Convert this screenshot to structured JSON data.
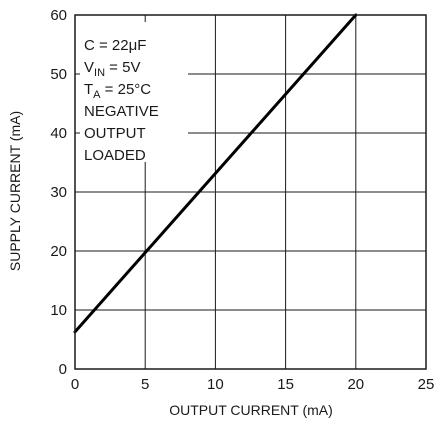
{
  "chart_data": {
    "type": "line",
    "xlabel": "OUTPUT CURRENT (mA)",
    "ylabel": "SUPPLY CURRENT (mA)",
    "xlim": [
      0,
      25
    ],
    "ylim": [
      0,
      60
    ],
    "x_ticks": [
      "0",
      "5",
      "10",
      "15",
      "20",
      "25"
    ],
    "y_ticks": [
      "0",
      "10",
      "20",
      "30",
      "40",
      "50",
      "60"
    ],
    "grid": true,
    "series": [
      {
        "x": [
          0,
          20
        ],
        "y": [
          6.3,
          60
        ]
      }
    ],
    "annotation": {
      "c": "C = 22μF",
      "vin_main": "V",
      "vin_sub": "IN",
      "vin_rest": " = 5V",
      "ta_main": "T",
      "ta_sub": "A",
      "ta_rest": " = 25°C",
      "line4": "NEGATIVE",
      "line5": "OUTPUT",
      "line6": "LOADED"
    }
  }
}
